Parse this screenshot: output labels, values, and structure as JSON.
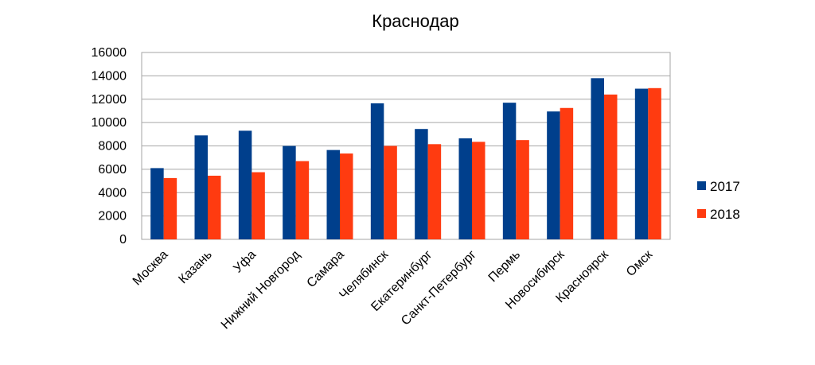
{
  "chart_data": {
    "type": "bar",
    "title": "Краснодар",
    "xlabel": "",
    "ylabel": "",
    "ylim": [
      0,
      16000
    ],
    "yticks": [
      0,
      2000,
      4000,
      6000,
      8000,
      10000,
      12000,
      14000,
      16000
    ],
    "grid": true,
    "legend_position": "right",
    "categories": [
      "Москва",
      "Казань",
      "Уфа",
      "Нижний Новгород",
      "Самара",
      "Челябинск",
      "Екатеринбург",
      "Санкт-Петербург",
      "Пермь",
      "Новосибирск",
      "Красноярск",
      "Омск"
    ],
    "series": [
      {
        "name": "2017",
        "color": "#003f8c",
        "values": [
          6100,
          8900,
          9300,
          8000,
          7650,
          11650,
          9450,
          8650,
          11700,
          10950,
          13800,
          12900
        ]
      },
      {
        "name": "2018",
        "color": "#ff3b10",
        "values": [
          5250,
          5450,
          5750,
          6700,
          7350,
          8000,
          8150,
          8350,
          8500,
          11250,
          12400,
          12950
        ]
      }
    ]
  }
}
